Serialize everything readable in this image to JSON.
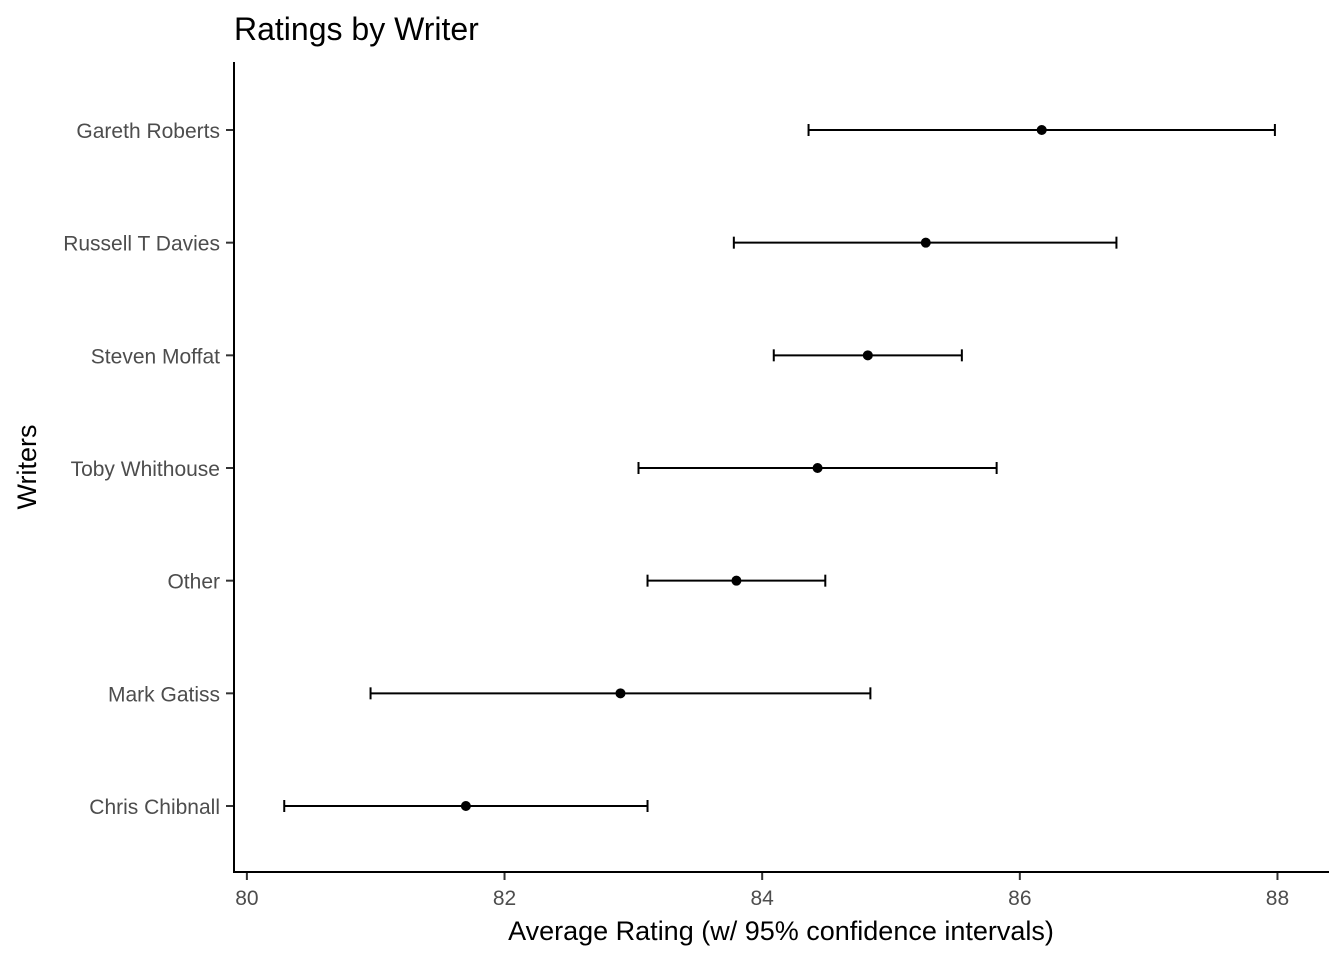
{
  "chart_data": {
    "type": "errorbar",
    "title": "Ratings by Writer",
    "xlabel": "Average Rating (w/ 95% confidence intervals)",
    "ylabel": "Writers",
    "xlim": [
      79.9,
      88.4
    ],
    "x_ticks": [
      80,
      82,
      84,
      86,
      88
    ],
    "grid": false,
    "categories": [
      "Gareth Roberts",
      "Russell T Davies",
      "Steven Moffat",
      "Toby Whithouse",
      "Other",
      "Mark Gatiss",
      "Chris Chibnall"
    ],
    "series": [
      {
        "values": [
          86.17,
          85.27,
          84.82,
          84.43,
          83.8,
          82.9,
          81.7
        ],
        "lower": [
          84.36,
          83.78,
          84.09,
          83.04,
          83.11,
          80.96,
          80.29
        ],
        "upper": [
          87.98,
          86.75,
          85.55,
          85.82,
          84.49,
          84.84,
          83.11
        ]
      }
    ]
  }
}
